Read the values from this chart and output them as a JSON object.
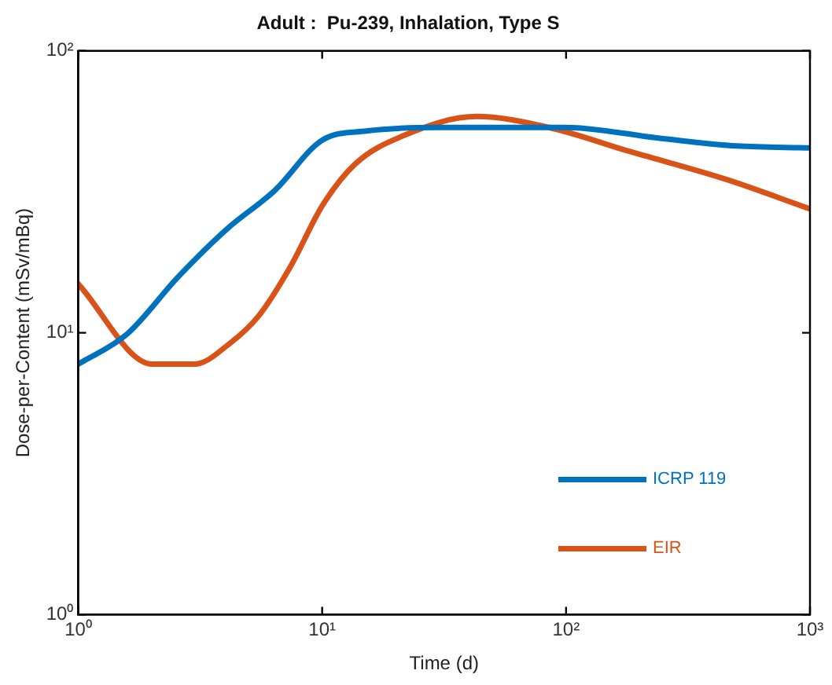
{
  "chart_data": {
    "type": "line",
    "title": "Adult :  Pu-239, Inhalation, Type S",
    "xlabel": "Time (d)",
    "ylabel": "Dose-per-Content (mSv/mBq)",
    "log": "xy",
    "xlim": [
      1,
      1000
    ],
    "ylim": [
      1,
      100
    ],
    "xticks": [
      {
        "value": 1,
        "label": "10⁰"
      },
      {
        "value": 10,
        "label": "10¹"
      },
      {
        "value": 100,
        "label": "10²"
      },
      {
        "value": 1000,
        "label": "10³"
      }
    ],
    "yticks": [
      {
        "value": 1,
        "label": "10⁰"
      },
      {
        "value": 10,
        "label": "10¹"
      },
      {
        "value": 100,
        "label": "10²"
      }
    ],
    "grid": false,
    "legend": "bottom right",
    "marker": "none",
    "line_style": "solid",
    "series": [
      {
        "name": "ICRP 119",
        "color": "#0072bd",
        "x": [
          1,
          1.58,
          2.57,
          4.06,
          6.4,
          10,
          15.2,
          30,
          60,
          99,
          246,
          500,
          1000
        ],
        "values": [
          7.74,
          9.87,
          15.8,
          23.3,
          32,
          48.2,
          52,
          53.5,
          53.5,
          53.5,
          48.9,
          46,
          45.3
        ]
      },
      {
        "name": "EIR",
        "color": "#d95319",
        "x": [
          1,
          2.01,
          3.0,
          4.17,
          5.5,
          7.45,
          10,
          13.7,
          21.6,
          43,
          85,
          182,
          454,
          1000
        ],
        "values": [
          14.9,
          7.74,
          7.74,
          9.15,
          11.5,
          17.3,
          28.2,
          39.8,
          50.1,
          58.5,
          53.5,
          44,
          35,
          27.5
        ]
      }
    ]
  }
}
